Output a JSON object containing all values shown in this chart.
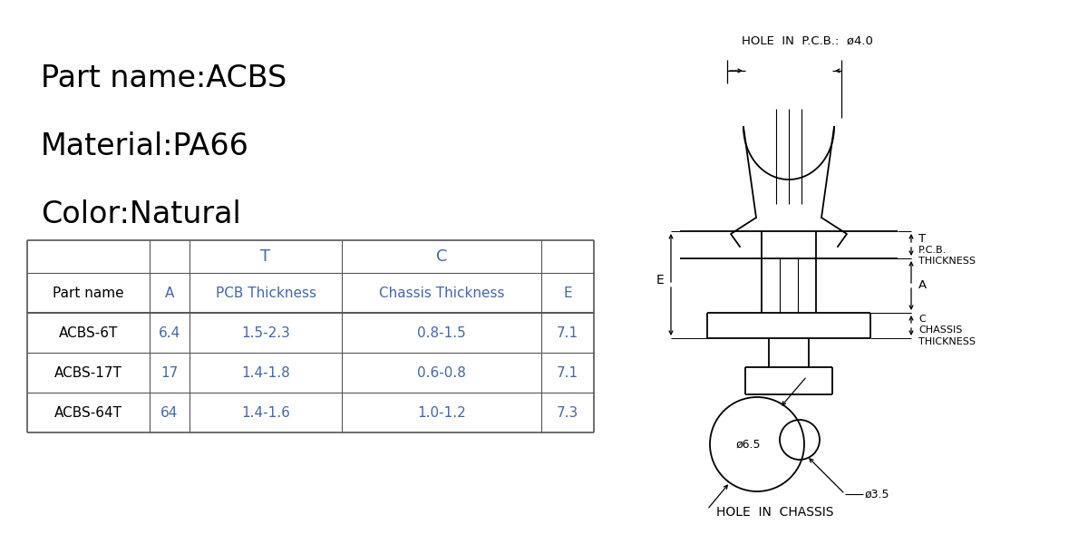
{
  "bg_color": "#ffffff",
  "title_lines": [
    "Part name:ACBS",
    "Material:PA66",
    "Color:Natural"
  ],
  "title_fontsize": 24,
  "title_color": "#000000",
  "table_header_row1": [
    "",
    "",
    "T",
    "C",
    ""
  ],
  "table_header_row2": [
    "Part name",
    "A",
    "PCB Thickness",
    "Chassis Thickness",
    "E"
  ],
  "table_data": [
    [
      "ACBS-6T",
      "6.4",
      "1.5-2.3",
      "0.8-1.5",
      "7.1"
    ],
    [
      "ACBS-17T",
      "17",
      "1.4-1.8",
      "0.6-0.8",
      "7.1"
    ],
    [
      "ACBS-64T",
      "64",
      "1.4-1.6",
      "1.0-1.2",
      "7.3"
    ]
  ],
  "table_text_color": "#4466aa",
  "table_name_color": "#000000",
  "diagram_line_color": "#000000",
  "hole_pcb_text": "HOLE  IN  P.C.B.:  ø4.0",
  "hole_chassis_text": "HOLE  IN  CHASSIS",
  "label_T": "T",
  "label_A": "A",
  "label_E": "E",
  "label_phi65": "ø6.5",
  "label_phi35": "ø3.5"
}
